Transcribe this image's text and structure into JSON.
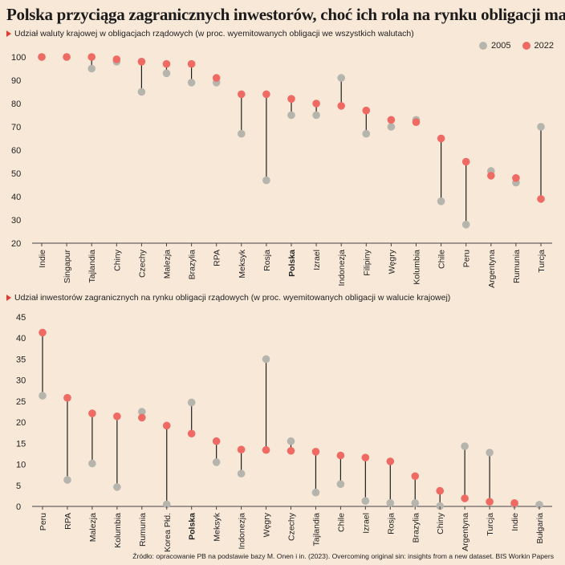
{
  "title": "Polska przyciąga zagranicznych inwestorów, choć ich rola na rynku obligacji maleje",
  "source": "Źródło: opracowanie PB na podstawie bazy M. Onen i in. (2023). Overcoming original sin: insights from a new dataset. BIS Workin Papers",
  "legend": [
    {
      "label": "2005",
      "color": "#b5b5ae"
    },
    {
      "label": "2022",
      "color": "#ef6a63"
    }
  ],
  "chart_data": [
    {
      "type": "dumbbell",
      "title": "Udział waluty krajowej w obligacjach rządowych (w proc. wyemitowanych obligacji we wszystkich walutach)",
      "ylim": [
        20,
        100
      ],
      "yticks": [
        20,
        30,
        40,
        50,
        60,
        70,
        80,
        90,
        100
      ],
      "grid": false,
      "categories": [
        "Indie",
        "Singapur",
        "Tajlandia",
        "Chiny",
        "Czechy",
        "Malezja",
        "Brazylia",
        "RPA",
        "Meksyk",
        "Rosja",
        "Polska",
        "Izrael",
        "Indonezja",
        "Filipiny",
        "Węgry",
        "Kolumbia",
        "Chile",
        "Peru",
        "Argentyna",
        "Rumunia",
        "Turcja"
      ],
      "highlight": "Polska",
      "series": [
        {
          "name": "2005",
          "values": [
            100,
            100,
            95,
            98,
            85,
            93,
            89,
            89,
            67,
            47,
            75,
            75,
            91,
            67,
            70,
            73,
            38,
            28,
            51,
            46,
            70
          ]
        },
        {
          "name": "2022",
          "values": [
            100,
            100,
            100,
            99,
            98,
            97,
            97,
            91,
            84,
            84,
            82,
            80,
            79,
            77,
            73,
            72,
            65,
            55,
            49,
            48,
            39
          ]
        }
      ]
    },
    {
      "type": "dumbbell",
      "title": "Udział inwestorów zagranicznych na rynku obligacji rządowych (w proc. wyemitowanych obligacji w walucie krajowej)",
      "ylim": [
        0,
        45
      ],
      "yticks": [
        0,
        5,
        10,
        15,
        20,
        25,
        30,
        35,
        40,
        45
      ],
      "grid": false,
      "categories": [
        "Peru",
        "RPA",
        "Malezja",
        "Kolumbia",
        "Rumunia",
        "Korea Płd.",
        "Polska",
        "Meksyk",
        "Indonezja",
        "Węgry",
        "Czechy",
        "Tajlandia",
        "Chile",
        "Izrael",
        "Rosja",
        "Brazylia",
        "Chiny",
        "Argentyna",
        "Turcja",
        "Indie",
        "Bułgaria"
      ],
      "highlight": "Polska",
      "series": [
        {
          "name": "2005",
          "values": [
            26.3,
            6.3,
            10.2,
            4.6,
            22.5,
            0.5,
            24.7,
            10.5,
            7.8,
            35,
            15.5,
            3.3,
            5.3,
            1.3,
            0.8,
            0.8,
            0.1,
            14.3,
            12.8,
            0.5,
            0.4
          ]
        },
        {
          "name": "2022",
          "values": [
            41.3,
            25.8,
            22.1,
            21.4,
            21.1,
            19.2,
            17.3,
            15.5,
            13.5,
            13.4,
            13.2,
            13,
            12.1,
            11.6,
            10.7,
            7.2,
            3.7,
            1.9,
            1.1,
            0.8,
            null
          ]
        }
      ]
    }
  ]
}
